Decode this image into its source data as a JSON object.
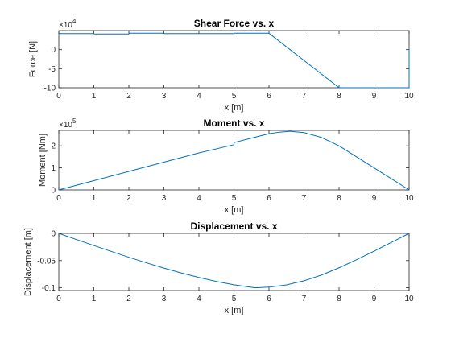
{
  "chart_data": [
    {
      "type": "line",
      "title": "Shear Force vs. x",
      "xlabel": "x [m]",
      "ylabel": "Force [N]",
      "y_multiplier_label": "×10",
      "y_multiplier_exponent": "4",
      "xlim": [
        0,
        10
      ],
      "ylim": [
        -10,
        5
      ],
      "xticks": [
        0,
        1,
        2,
        3,
        4,
        5,
        6,
        7,
        8,
        9,
        10
      ],
      "xtick_labels": [
        "0",
        "1",
        "2",
        "3",
        "4",
        "5",
        "6",
        "7",
        "8",
        "9",
        "10"
      ],
      "yticks": [
        -10,
        -5,
        0
      ],
      "ytick_labels": [
        "-10",
        "-5",
        "0"
      ],
      "color": "#0072BD",
      "series": [
        {
          "x": [
            0,
            1,
            1.01,
            2,
            2.01,
            3,
            3.01,
            4,
            4.01,
            5,
            5.01,
            6,
            8,
            9,
            10,
            10
          ],
          "y": [
            4.2,
            4.2,
            4.1,
            4.1,
            4.3,
            4.3,
            4.2,
            4.2,
            4.2,
            4.2,
            4.3,
            4.3,
            -10.0,
            -10.0,
            -10.0,
            0
          ]
        }
      ]
    },
    {
      "type": "line",
      "title": "Moment vs. x",
      "xlabel": "x [m]",
      "ylabel": "Moment [Nm]",
      "y_multiplier_label": "×10",
      "y_multiplier_exponent": "5",
      "xlim": [
        0,
        10
      ],
      "ylim": [
        0,
        2.7
      ],
      "xticks": [
        0,
        1,
        2,
        3,
        4,
        5,
        6,
        7,
        8,
        9,
        10
      ],
      "xtick_labels": [
        "0",
        "1",
        "2",
        "3",
        "4",
        "5",
        "6",
        "7",
        "8",
        "9",
        "10"
      ],
      "yticks": [
        0,
        1,
        2
      ],
      "ytick_labels": [
        "0",
        "1",
        "2"
      ],
      "color": "#0072BD",
      "series": [
        {
          "x": [
            0,
            1,
            2,
            3,
            4,
            5,
            5.01,
            5.5,
            6,
            6.3,
            6.6,
            7,
            7.5,
            8,
            8.5,
            9,
            9.5,
            10
          ],
          "y": [
            0,
            0.42,
            0.84,
            1.26,
            1.68,
            2.05,
            2.15,
            2.35,
            2.55,
            2.62,
            2.66,
            2.6,
            2.38,
            2.0,
            1.5,
            1.0,
            0.5,
            0
          ]
        }
      ]
    },
    {
      "type": "line",
      "title": "Displacement vs. x",
      "xlabel": "x [m]",
      "ylabel": "Displacement [m]",
      "xlim": [
        0,
        10
      ],
      "ylim": [
        -0.105,
        0
      ],
      "xticks": [
        0,
        1,
        2,
        3,
        4,
        5,
        6,
        7,
        8,
        9,
        10
      ],
      "xtick_labels": [
        "0",
        "1",
        "2",
        "3",
        "4",
        "5",
        "6",
        "7",
        "8",
        "9",
        "10"
      ],
      "yticks": [
        -0.1,
        -0.05,
        0
      ],
      "ytick_labels": [
        "-0.1",
        "-0.05",
        "0"
      ],
      "color": "#0072BD",
      "series": [
        {
          "x": [
            0,
            0.5,
            1,
            1.5,
            2,
            2.5,
            3,
            3.5,
            4,
            4.5,
            5,
            5.6,
            6,
            6.5,
            7,
            7.5,
            8,
            8.5,
            9,
            9.5,
            10
          ],
          "y": [
            0,
            -0.0112,
            -0.0223,
            -0.0332,
            -0.0439,
            -0.0541,
            -0.0638,
            -0.0728,
            -0.081,
            -0.0883,
            -0.0944,
            -0.1,
            -0.0988,
            -0.0946,
            -0.0871,
            -0.0765,
            -0.0632,
            -0.0483,
            -0.0327,
            -0.0164,
            0
          ]
        }
      ]
    }
  ]
}
